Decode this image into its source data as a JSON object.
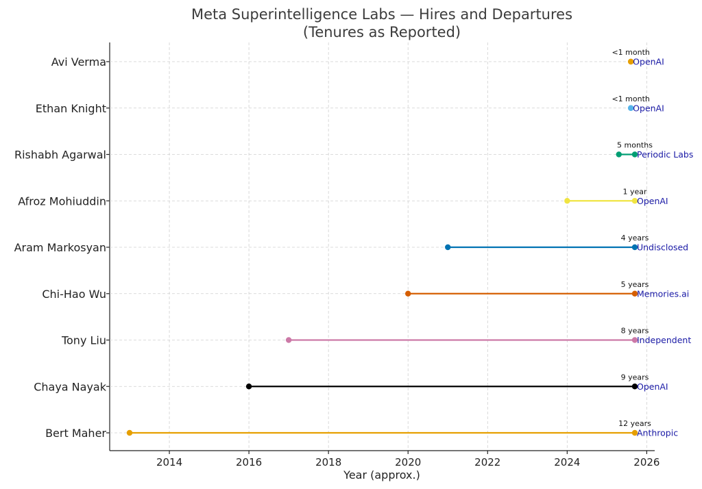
{
  "chart_data": {
    "type": "timeline",
    "title_line1": "Meta Superintelligence Labs — Hires and Departures",
    "title_line2": "(Tenures as Reported)",
    "xlabel": "Year (approx.)",
    "xlim": [
      2012.5,
      2026.2
    ],
    "xticks": [
      2014,
      2016,
      2018,
      2020,
      2022,
      2024,
      2026
    ],
    "grid": true,
    "rows": [
      {
        "name": "Avi Verma",
        "start": 2025.6,
        "end": 2025.6,
        "tenure": "<1 month",
        "destination": "OpenAI",
        "color": "#e69f00"
      },
      {
        "name": "Ethan Knight",
        "start": 2025.6,
        "end": 2025.6,
        "tenure": "<1 month",
        "destination": "OpenAI",
        "color": "#56b4e9"
      },
      {
        "name": "Rishabh Agarwal",
        "start": 2025.3,
        "end": 2025.7,
        "tenure": "5 months",
        "destination": "Periodic Labs",
        "color": "#009e73"
      },
      {
        "name": "Afroz Mohiuddin",
        "start": 2024.0,
        "end": 2025.7,
        "tenure": "1 year",
        "destination": "OpenAI",
        "color": "#f0e442"
      },
      {
        "name": "Aram Markosyan",
        "start": 2021.0,
        "end": 2025.7,
        "tenure": "4 years",
        "destination": "Undisclosed",
        "color": "#0072b2"
      },
      {
        "name": "Chi-Hao Wu",
        "start": 2020.0,
        "end": 2025.7,
        "tenure": "5 years",
        "destination": "Memories.ai",
        "color": "#d55e00"
      },
      {
        "name": "Tony Liu",
        "start": 2017.0,
        "end": 2025.7,
        "tenure": "8 years",
        "destination": "Independent",
        "color": "#cc79a7"
      },
      {
        "name": "Chaya Nayak",
        "start": 2016.0,
        "end": 2025.7,
        "tenure": "9 years",
        "destination": "OpenAI",
        "color": "#000000"
      },
      {
        "name": "Bert Maher",
        "start": 2013.0,
        "end": 2025.7,
        "tenure": "12 years",
        "destination": "Anthropic",
        "color": "#e69f00"
      }
    ]
  }
}
